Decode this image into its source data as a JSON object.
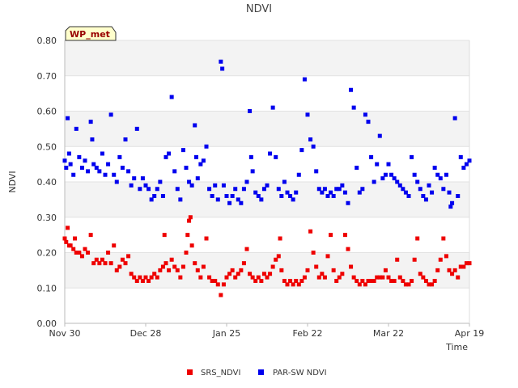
{
  "chart_data": {
    "type": "scatter",
    "title": "NDVI",
    "xlabel": "Time",
    "ylabel": "NDVI",
    "station_label": "WP_met",
    "ylim": [
      0,
      0.8
    ],
    "yticks": [
      "0.00",
      "0.10",
      "0.20",
      "0.30",
      "0.40",
      "0.50",
      "0.60",
      "0.70",
      "0.80"
    ],
    "xlim_days": [
      0,
      140
    ],
    "xticks": [
      {
        "label": "Nov 30",
        "day": 0
      },
      {
        "label": "Dec 28",
        "day": 28
      },
      {
        "label": "Jan 25",
        "day": 56
      },
      {
        "label": "Feb 22",
        "day": 84
      },
      {
        "label": "Mar 22",
        "day": 112
      },
      {
        "label": "Apr 19",
        "day": 140
      }
    ],
    "series": [
      {
        "name": "SRS_NDVI",
        "color": "#ee0000",
        "points": [
          [
            0,
            0.24
          ],
          [
            0.5,
            0.23
          ],
          [
            1,
            0.27
          ],
          [
            1.5,
            0.22
          ],
          [
            2,
            0.22
          ],
          [
            3,
            0.21
          ],
          [
            3.5,
            0.24
          ],
          [
            4,
            0.2
          ],
          [
            5,
            0.2
          ],
          [
            6,
            0.19
          ],
          [
            7,
            0.21
          ],
          [
            8,
            0.2
          ],
          [
            9,
            0.25
          ],
          [
            10,
            0.17
          ],
          [
            11,
            0.18
          ],
          [
            12,
            0.17
          ],
          [
            13,
            0.18
          ],
          [
            14,
            0.17
          ],
          [
            15,
            0.2
          ],
          [
            16,
            0.17
          ],
          [
            17,
            0.22
          ],
          [
            18,
            0.15
          ],
          [
            19,
            0.16
          ],
          [
            20,
            0.18
          ],
          [
            21,
            0.17
          ],
          [
            22,
            0.19
          ],
          [
            23,
            0.14
          ],
          [
            24,
            0.13
          ],
          [
            25,
            0.12
          ],
          [
            26,
            0.13
          ],
          [
            27,
            0.12
          ],
          [
            28,
            0.13
          ],
          [
            29,
            0.12
          ],
          [
            30,
            0.13
          ],
          [
            31,
            0.14
          ],
          [
            32,
            0.13
          ],
          [
            33,
            0.15
          ],
          [
            34,
            0.16
          ],
          [
            34.5,
            0.25
          ],
          [
            35,
            0.17
          ],
          [
            36,
            0.15
          ],
          [
            37,
            0.18
          ],
          [
            38,
            0.16
          ],
          [
            39,
            0.15
          ],
          [
            40,
            0.13
          ],
          [
            41,
            0.16
          ],
          [
            42,
            0.2
          ],
          [
            42.5,
            0.25
          ],
          [
            43,
            0.29
          ],
          [
            43.5,
            0.3
          ],
          [
            44,
            0.22
          ],
          [
            45,
            0.17
          ],
          [
            46,
            0.15
          ],
          [
            47,
            0.13
          ],
          [
            48,
            0.16
          ],
          [
            49,
            0.24
          ],
          [
            50,
            0.13
          ],
          [
            51,
            0.12
          ],
          [
            52,
            0.12
          ],
          [
            53,
            0.11
          ],
          [
            54,
            0.08
          ],
          [
            55,
            0.11
          ],
          [
            56,
            0.13
          ],
          [
            57,
            0.14
          ],
          [
            58,
            0.15
          ],
          [
            59,
            0.13
          ],
          [
            60,
            0.14
          ],
          [
            61,
            0.15
          ],
          [
            62,
            0.17
          ],
          [
            63,
            0.21
          ],
          [
            64,
            0.14
          ],
          [
            65,
            0.13
          ],
          [
            66,
            0.12
          ],
          [
            67,
            0.13
          ],
          [
            68,
            0.12
          ],
          [
            69,
            0.14
          ],
          [
            70,
            0.13
          ],
          [
            71,
            0.14
          ],
          [
            72,
            0.16
          ],
          [
            73,
            0.18
          ],
          [
            74,
            0.19
          ],
          [
            74.5,
            0.24
          ],
          [
            75,
            0.15
          ],
          [
            76,
            0.12
          ],
          [
            77,
            0.11
          ],
          [
            78,
            0.12
          ],
          [
            79,
            0.11
          ],
          [
            80,
            0.12
          ],
          [
            81,
            0.11
          ],
          [
            82,
            0.12
          ],
          [
            83,
            0.13
          ],
          [
            84,
            0.15
          ],
          [
            85,
            0.26
          ],
          [
            86,
            0.2
          ],
          [
            87,
            0.16
          ],
          [
            88,
            0.13
          ],
          [
            89,
            0.14
          ],
          [
            90,
            0.13
          ],
          [
            91,
            0.19
          ],
          [
            92,
            0.25
          ],
          [
            93,
            0.15
          ],
          [
            94,
            0.12
          ],
          [
            95,
            0.13
          ],
          [
            96,
            0.14
          ],
          [
            97,
            0.25
          ],
          [
            98,
            0.21
          ],
          [
            99,
            0.16
          ],
          [
            100,
            0.13
          ],
          [
            101,
            0.12
          ],
          [
            102,
            0.11
          ],
          [
            103,
            0.12
          ],
          [
            104,
            0.11
          ],
          [
            105,
            0.12
          ],
          [
            106,
            0.12
          ],
          [
            107,
            0.12
          ],
          [
            108,
            0.13
          ],
          [
            109,
            0.13
          ],
          [
            110,
            0.13
          ],
          [
            111,
            0.15
          ],
          [
            112,
            0.13
          ],
          [
            113,
            0.12
          ],
          [
            114,
            0.12
          ],
          [
            115,
            0.18
          ],
          [
            116,
            0.13
          ],
          [
            117,
            0.12
          ],
          [
            118,
            0.11
          ],
          [
            119,
            0.11
          ],
          [
            120,
            0.12
          ],
          [
            121,
            0.18
          ],
          [
            122,
            0.24
          ],
          [
            123,
            0.14
          ],
          [
            124,
            0.13
          ],
          [
            125,
            0.12
          ],
          [
            126,
            0.11
          ],
          [
            127,
            0.11
          ],
          [
            128,
            0.12
          ],
          [
            129,
            0.15
          ],
          [
            130,
            0.18
          ],
          [
            131,
            0.24
          ],
          [
            132,
            0.19
          ],
          [
            133,
            0.15
          ],
          [
            134,
            0.14
          ],
          [
            135,
            0.15
          ],
          [
            136,
            0.13
          ],
          [
            137,
            0.16
          ],
          [
            138,
            0.16
          ],
          [
            139,
            0.17
          ],
          [
            140,
            0.17
          ]
        ]
      },
      {
        "name": "PAR-SW NDVI",
        "color": "#0000ee",
        "points": [
          [
            0,
            0.46
          ],
          [
            0.5,
            0.44
          ],
          [
            1,
            0.58
          ],
          [
            1.5,
            0.48
          ],
          [
            2,
            0.45
          ],
          [
            3,
            0.42
          ],
          [
            4,
            0.55
          ],
          [
            5,
            0.47
          ],
          [
            6,
            0.44
          ],
          [
            7,
            0.46
          ],
          [
            8,
            0.43
          ],
          [
            9,
            0.57
          ],
          [
            9.5,
            0.52
          ],
          [
            10,
            0.45
          ],
          [
            11,
            0.44
          ],
          [
            12,
            0.43
          ],
          [
            13,
            0.48
          ],
          [
            14,
            0.42
          ],
          [
            15,
            0.45
          ],
          [
            16,
            0.59
          ],
          [
            17,
            0.42
          ],
          [
            18,
            0.4
          ],
          [
            19,
            0.47
          ],
          [
            20,
            0.44
          ],
          [
            21,
            0.52
          ],
          [
            22,
            0.43
          ],
          [
            23,
            0.39
          ],
          [
            24,
            0.41
          ],
          [
            25,
            0.55
          ],
          [
            26,
            0.38
          ],
          [
            27,
            0.41
          ],
          [
            28,
            0.39
          ],
          [
            29,
            0.38
          ],
          [
            30,
            0.35
          ],
          [
            31,
            0.36
          ],
          [
            32,
            0.38
          ],
          [
            33,
            0.4
          ],
          [
            34,
            0.36
          ],
          [
            35,
            0.47
          ],
          [
            36,
            0.48
          ],
          [
            37,
            0.64
          ],
          [
            38,
            0.43
          ],
          [
            39,
            0.38
          ],
          [
            40,
            0.35
          ],
          [
            41,
            0.49
          ],
          [
            42,
            0.44
          ],
          [
            43,
            0.4
          ],
          [
            44,
            0.39
          ],
          [
            45,
            0.56
          ],
          [
            45.5,
            0.47
          ],
          [
            46,
            0.41
          ],
          [
            47,
            0.45
          ],
          [
            48,
            0.46
          ],
          [
            49,
            0.5
          ],
          [
            50,
            0.38
          ],
          [
            51,
            0.36
          ],
          [
            52,
            0.39
          ],
          [
            53,
            0.35
          ],
          [
            54,
            0.74
          ],
          [
            54.5,
            0.72
          ],
          [
            55,
            0.39
          ],
          [
            56,
            0.36
          ],
          [
            57,
            0.34
          ],
          [
            58,
            0.36
          ],
          [
            59,
            0.38
          ],
          [
            60,
            0.35
          ],
          [
            61,
            0.34
          ],
          [
            62,
            0.38
          ],
          [
            63,
            0.4
          ],
          [
            64,
            0.6
          ],
          [
            64.5,
            0.47
          ],
          [
            65,
            0.43
          ],
          [
            66,
            0.37
          ],
          [
            67,
            0.36
          ],
          [
            68,
            0.35
          ],
          [
            69,
            0.38
          ],
          [
            70,
            0.39
          ],
          [
            71,
            0.48
          ],
          [
            72,
            0.61
          ],
          [
            73,
            0.47
          ],
          [
            74,
            0.38
          ],
          [
            75,
            0.36
          ],
          [
            76,
            0.4
          ],
          [
            77,
            0.37
          ],
          [
            78,
            0.36
          ],
          [
            79,
            0.35
          ],
          [
            80,
            0.37
          ],
          [
            81,
            0.42
          ],
          [
            82,
            0.49
          ],
          [
            83,
            0.69
          ],
          [
            84,
            0.59
          ],
          [
            85,
            0.52
          ],
          [
            86,
            0.5
          ],
          [
            87,
            0.43
          ],
          [
            88,
            0.38
          ],
          [
            89,
            0.37
          ],
          [
            90,
            0.38
          ],
          [
            91,
            0.36
          ],
          [
            92,
            0.37
          ],
          [
            93,
            0.36
          ],
          [
            94,
            0.38
          ],
          [
            95,
            0.38
          ],
          [
            96,
            0.39
          ],
          [
            97,
            0.37
          ],
          [
            98,
            0.34
          ],
          [
            99,
            0.66
          ],
          [
            100,
            0.61
          ],
          [
            101,
            0.44
          ],
          [
            102,
            0.37
          ],
          [
            103,
            0.38
          ],
          [
            104,
            0.59
          ],
          [
            105,
            0.57
          ],
          [
            106,
            0.47
          ],
          [
            107,
            0.4
          ],
          [
            108,
            0.45
          ],
          [
            109,
            0.53
          ],
          [
            110,
            0.41
          ],
          [
            111,
            0.42
          ],
          [
            112,
            0.45
          ],
          [
            113,
            0.42
          ],
          [
            114,
            0.41
          ],
          [
            115,
            0.4
          ],
          [
            116,
            0.39
          ],
          [
            117,
            0.38
          ],
          [
            118,
            0.37
          ],
          [
            119,
            0.36
          ],
          [
            120,
            0.47
          ],
          [
            121,
            0.42
          ],
          [
            122,
            0.4
          ],
          [
            123,
            0.38
          ],
          [
            124,
            0.36
          ],
          [
            125,
            0.35
          ],
          [
            126,
            0.39
          ],
          [
            127,
            0.37
          ],
          [
            128,
            0.44
          ],
          [
            129,
            0.42
          ],
          [
            130,
            0.41
          ],
          [
            131,
            0.38
          ],
          [
            132,
            0.42
          ],
          [
            133,
            0.37
          ],
          [
            133.5,
            0.33
          ],
          [
            134,
            0.34
          ],
          [
            135,
            0.58
          ],
          [
            136,
            0.36
          ],
          [
            137,
            0.47
          ],
          [
            138,
            0.44
          ],
          [
            139,
            0.45
          ],
          [
            140,
            0.46
          ]
        ]
      }
    ],
    "legend": {
      "placement": "bottom-center",
      "entries": [
        "SRS_NDVI",
        "PAR-SW NDVI"
      ]
    },
    "grid": true,
    "band_colors": [
      "#f3f3f3",
      "#ffffff"
    ],
    "label_badge_colors": {
      "fill": "#ffffcc",
      "text": "#990000"
    }
  }
}
